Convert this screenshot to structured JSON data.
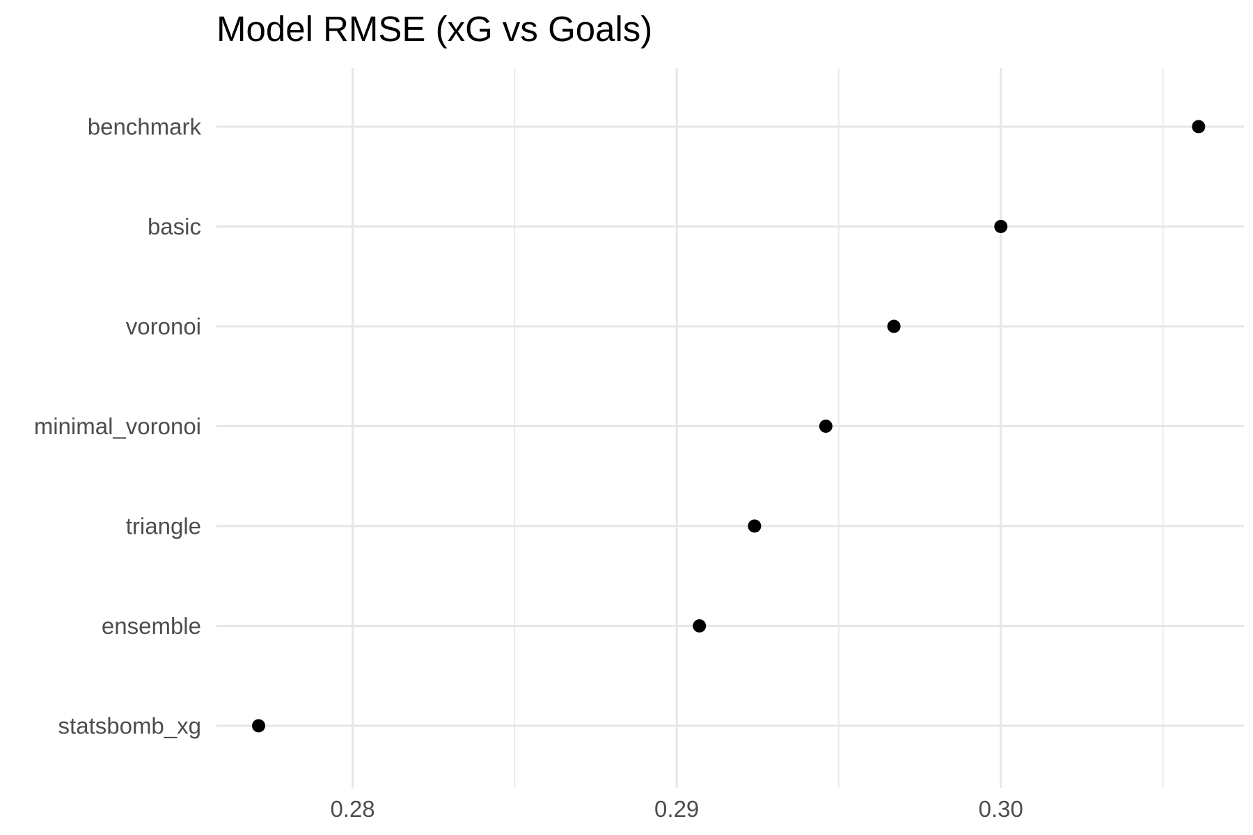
{
  "chart_data": {
    "type": "scatter",
    "title": "Model RMSE (xG vs Goals)",
    "xlabel": "",
    "ylabel": "",
    "categories": [
      "benchmark",
      "basic",
      "voronoi",
      "minimal_voronoi",
      "triangle",
      "ensemble",
      "statsbomb_xg"
    ],
    "values": [
      0.3061,
      0.3,
      0.2967,
      0.2946,
      0.2924,
      0.2907,
      0.2771
    ],
    "xlim": [
      0.2758,
      0.3075
    ],
    "x_major_ticks": [
      0.28,
      0.29,
      0.3
    ],
    "x_tick_labels": [
      "0.28",
      "0.29",
      "0.30"
    ],
    "x_minor_ticks": [
      0.285,
      0.295,
      0.305
    ],
    "grid": true,
    "legend": "none",
    "colors": {
      "point": "#000000",
      "grid": "#e6e6e6",
      "tick_text": "#4d4d4d",
      "title": "#000000"
    }
  }
}
